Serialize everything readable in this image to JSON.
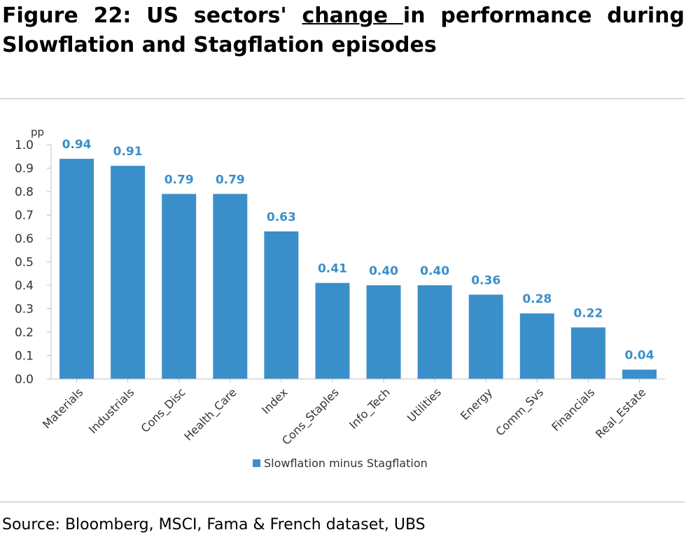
{
  "figure": {
    "title_prefix": "Figure 22: US sectors' ",
    "title_underlined": "change ",
    "title_suffix": "in performance during Slowflation and Stagflation episodes",
    "source": "Source: Bloomberg, MSCI, Fama & French dataset, UBS"
  },
  "colors": {
    "bar": "#3a8fca",
    "label": "#3a8fca",
    "axis_text": "#333333",
    "rule": "#d9d9d9"
  },
  "chart_data": {
    "type": "bar",
    "title": "",
    "xlabel": "",
    "ylabel": "",
    "unit_label": "pp",
    "ylim": [
      0,
      1.0
    ],
    "ytick_step": 0.1,
    "grid": false,
    "legend_position": "bottom",
    "categories": [
      "Materials",
      "Industrials",
      "Cons_Disc",
      "Health_Care",
      "Index",
      "Cons_Staples",
      "Info_Tech",
      "Utilities",
      "Energy",
      "Comm_Svs",
      "Financials",
      "Real_Estate"
    ],
    "series": [
      {
        "name": "Slowflation minus Stagflation",
        "values": [
          0.94,
          0.91,
          0.79,
          0.79,
          0.63,
          0.41,
          0.4,
          0.4,
          0.36,
          0.28,
          0.22,
          0.04
        ],
        "labels": [
          "0.94",
          "0.91",
          "0.79",
          "0.79",
          "0.63",
          "0.41",
          "0.40",
          "0.40",
          "0.36",
          "0.28",
          "0.22",
          "0.04"
        ]
      }
    ]
  }
}
